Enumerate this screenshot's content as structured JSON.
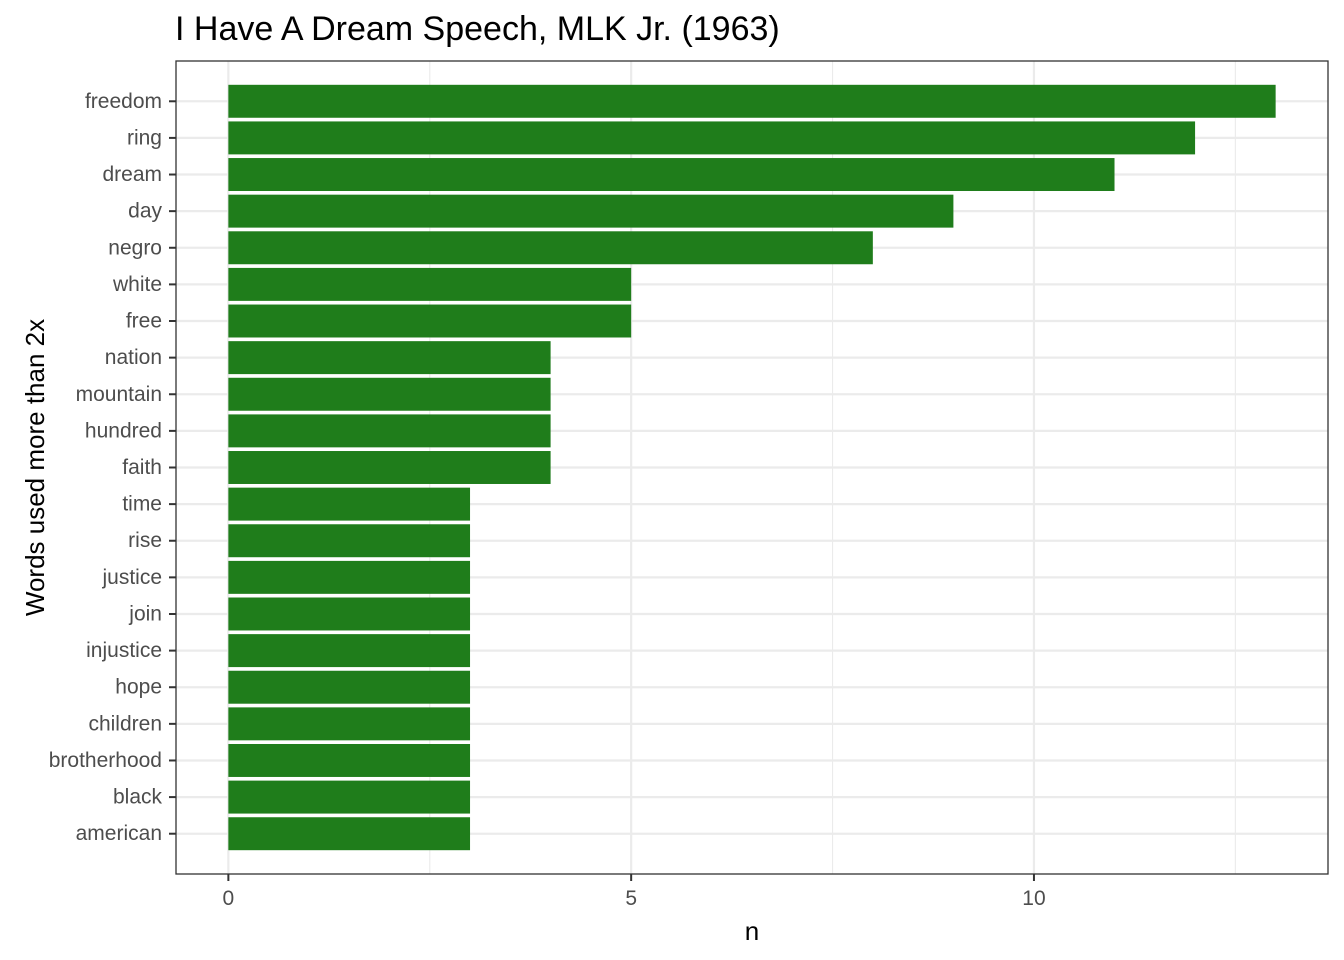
{
  "chart_data": {
    "type": "bar",
    "orientation": "horizontal",
    "title": "I Have A Dream Speech, MLK Jr. (1963)",
    "xlabel": "n",
    "ylabel": "Words used more than 2x",
    "categories": [
      "freedom",
      "ring",
      "dream",
      "day",
      "negro",
      "white",
      "free",
      "nation",
      "mountain",
      "hundred",
      "faith",
      "time",
      "rise",
      "justice",
      "join",
      "injustice",
      "hope",
      "children",
      "brotherhood",
      "black",
      "american"
    ],
    "values": [
      13,
      12,
      11,
      9,
      8,
      5,
      5,
      4,
      4,
      4,
      4,
      3,
      3,
      3,
      3,
      3,
      3,
      3,
      3,
      3,
      3
    ],
    "xlim": [
      -0.65,
      13.65
    ],
    "xticks": [
      0,
      5,
      10
    ],
    "xtick_labels": [
      "0",
      "5",
      "10"
    ],
    "bar_color": "#1f7d1b",
    "grid": true,
    "theme": "bw"
  }
}
